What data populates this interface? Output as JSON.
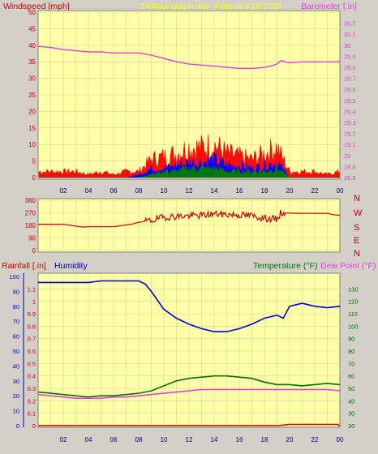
{
  "header": {
    "windspeed_label": "Windspeed [mph]",
    "title": "24 hour graph day",
    "date": "February 10 2024",
    "barometer_label": "Barometer [.in]"
  },
  "lower_header": {
    "rainfall_label": "Rainfall [.in]",
    "humidity_label": "Humidity",
    "temperature_label": "Temperature (°F)",
    "dewpoint_label": "Dew Point (°F)"
  },
  "colors": {
    "plot_bg": "#ffffa8",
    "grid": "#d6d6a0",
    "wind_gust": "#ff0000",
    "wind_avg": "#0000ff",
    "wind_low": "#008000",
    "barometer": "#e040e0",
    "direction": "#cc0000",
    "humidity": "#0000cc",
    "temperature": "#007000",
    "dewpoint": "#e040e0",
    "rain": "#cc0000"
  },
  "chart_data": [
    {
      "type": "line",
      "name": "wind-barometer",
      "x_ticks": [
        "02",
        "04",
        "06",
        "08",
        "10",
        "12",
        "14",
        "16",
        "18",
        "20",
        "22",
        "00"
      ],
      "left_axis": {
        "label": "Windspeed [mph]",
        "ylim": [
          0,
          50
        ],
        "ticks": [
          0,
          5,
          10,
          15,
          20,
          25,
          30,
          35,
          40,
          45,
          50
        ]
      },
      "right_axis": {
        "label": "Barometer [.in]",
        "ylim": [
          28.8,
          30.3
        ],
        "ticks": [
          "28.8",
          "28.9",
          "29",
          "29.1",
          "29.2",
          "29.3",
          "29.4",
          "29.5",
          "29.6",
          "29.7",
          "29.8",
          "29.9",
          "30",
          "30.1",
          "30.2"
        ]
      },
      "series": [
        {
          "name": "Barometer",
          "axis": "right",
          "x": [
            0,
            1,
            2,
            3,
            4,
            5,
            6,
            7,
            8,
            9,
            10,
            11,
            12,
            13,
            14,
            15,
            16,
            17,
            18,
            18.5,
            19,
            19.3,
            20,
            21,
            22,
            23,
            24
          ],
          "values": [
            29.99,
            29.98,
            29.96,
            29.95,
            29.94,
            29.94,
            29.93,
            29.93,
            29.93,
            29.91,
            29.88,
            29.85,
            29.83,
            29.82,
            29.81,
            29.8,
            29.79,
            29.79,
            29.8,
            29.81,
            29.83,
            29.86,
            29.84,
            29.85,
            29.85,
            29.85,
            29.85
          ]
        }
      ],
      "wind_envelope": {
        "x": [
          0,
          1,
          2,
          3,
          4,
          5,
          6,
          7,
          8,
          9,
          10,
          11,
          12,
          13,
          14,
          15,
          16,
          17,
          18,
          19,
          20,
          21,
          22,
          23,
          24
        ],
        "gust": [
          2,
          2,
          2,
          2,
          1,
          2,
          1,
          2,
          2,
          6,
          7,
          8,
          10,
          10,
          11,
          8,
          7,
          6,
          8,
          10,
          2,
          2,
          2,
          1,
          2
        ],
        "average": [
          0,
          0,
          0,
          0,
          0,
          0,
          0,
          0,
          1,
          3,
          3,
          4,
          5,
          5,
          6,
          4,
          4,
          3,
          4,
          5,
          0,
          0,
          0,
          0,
          0
        ],
        "low": [
          0,
          0,
          0,
          0,
          0,
          0,
          0,
          0,
          0,
          1,
          2,
          2,
          3,
          3,
          3,
          2,
          2,
          2,
          2,
          3,
          0,
          0,
          0,
          0,
          0
        ]
      }
    },
    {
      "type": "line",
      "name": "wind-direction",
      "x_ticks": [],
      "left_axis": {
        "ticks": [
          0,
          90,
          180,
          270,
          360
        ],
        "ylim": [
          0,
          360
        ]
      },
      "compass_labels": [
        "N",
        "W",
        "S",
        "E",
        "N"
      ],
      "series": [
        {
          "name": "Direction",
          "axis": "left",
          "x": [
            0,
            2,
            3.5,
            4,
            6,
            7.5,
            8,
            9,
            10,
            11,
            12,
            13,
            14,
            15,
            16,
            17,
            18,
            19,
            19.3,
            20,
            21,
            22,
            23,
            23.5,
            24
          ],
          "values": [
            188,
            188,
            168,
            170,
            170,
            190,
            202,
            215,
            238,
            245,
            248,
            252,
            262,
            258,
            255,
            248,
            232,
            222,
            270,
            268,
            266,
            266,
            266,
            256,
            252
          ]
        }
      ]
    },
    {
      "type": "line",
      "name": "temp-humidity-rain",
      "x_ticks": [
        "02",
        "04",
        "06",
        "08",
        "10",
        "12",
        "14",
        "16",
        "18",
        "20",
        "22",
        "00"
      ],
      "humidity_axis": {
        "ylim": [
          0,
          100
        ],
        "ticks": [
          0,
          10,
          20,
          30,
          40,
          50,
          60,
          70,
          80,
          90,
          100
        ]
      },
      "rain_axis": {
        "ylim": [
          0,
          1.2
        ],
        "ticks": [
          "0",
          "0.1",
          "0.2",
          "0.3",
          "0.4",
          "0.5",
          "0.6",
          "0.7",
          "0.8",
          "0.9",
          "1",
          "1.1"
        ]
      },
      "temp_axis": {
        "ylim": [
          20,
          140
        ],
        "ticks": [
          20,
          30,
          40,
          50,
          60,
          70,
          80,
          90,
          100,
          110,
          120,
          130
        ]
      },
      "series": [
        {
          "name": "Humidity",
          "axis": "humidity",
          "x": [
            0,
            1,
            2,
            3,
            4,
            5,
            6,
            7,
            8,
            8.5,
            9,
            10,
            11,
            12,
            13,
            14,
            15,
            16,
            17,
            18,
            19,
            19.5,
            20,
            21,
            22,
            23,
            24
          ],
          "values": [
            96,
            96,
            96,
            96,
            96,
            97,
            97,
            97,
            97,
            95,
            90,
            78,
            72,
            68,
            65,
            63,
            63,
            65,
            68,
            72,
            74,
            72,
            80,
            82,
            80,
            79,
            80
          ]
        },
        {
          "name": "Temperature",
          "axis": "temp",
          "x": [
            0,
            1,
            2,
            3,
            4,
            5,
            6,
            7,
            8,
            9,
            10,
            11,
            12,
            13,
            14,
            15,
            16,
            17,
            18,
            19,
            20,
            21,
            22,
            23,
            24
          ],
          "values": [
            47,
            46,
            45,
            44,
            43,
            44,
            44,
            45,
            46,
            48,
            52,
            56,
            58,
            59,
            60,
            60,
            59,
            58,
            55,
            53,
            53,
            52,
            53,
            54,
            53
          ]
        },
        {
          "name": "Dew Point",
          "axis": "temp",
          "x": [
            0,
            1,
            2,
            3,
            4,
            5,
            6,
            7,
            8,
            9,
            10,
            11,
            12,
            13,
            14,
            15,
            16,
            17,
            18,
            19,
            20,
            21,
            22,
            23,
            24
          ],
          "values": [
            45,
            44,
            43,
            42,
            42,
            42,
            43,
            43,
            44,
            45,
            46,
            47,
            48,
            49,
            49,
            49,
            49,
            49,
            49,
            49,
            49,
            49,
            49,
            49,
            48
          ]
        },
        {
          "name": "Rainfall",
          "axis": "rain",
          "x": [
            0,
            18,
            19,
            20,
            21,
            22,
            23,
            23.8,
            24
          ],
          "values": [
            0,
            0,
            0,
            0.01,
            0.01,
            0.01,
            0.01,
            0.01,
            0
          ]
        }
      ]
    }
  ]
}
